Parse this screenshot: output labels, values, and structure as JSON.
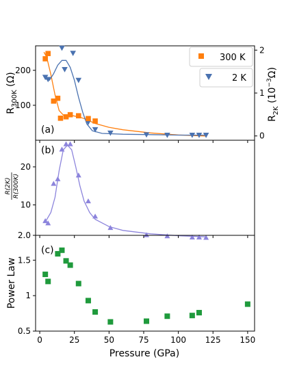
{
  "colors": {
    "orange": "#ff7f0e",
    "blue": "#4a72b0",
    "purple": "#8c84dc",
    "green": "#1f9a3c",
    "axis": "#000000"
  },
  "chart_data": [
    {
      "panel_label": "(a)",
      "type": "scatter",
      "xlim": [
        -3,
        155
      ],
      "ylim_left": [
        0,
        270
      ],
      "ylim_right": [
        -0.1,
        2.1
      ],
      "ylabel_left": "R300K (Ω)",
      "ylabel_right": "R2K (10⁻³Ω)",
      "yticks_left": [
        100,
        200
      ],
      "yticks_right": [
        0,
        1,
        2
      ],
      "legend": [
        {
          "label": "300 K",
          "marker": "square",
          "color": "#ff7f0e"
        },
        {
          "label": "2 K",
          "marker": "triangle-down",
          "color": "#4a72b0"
        }
      ],
      "series": [
        {
          "name": "300 K",
          "axis": "left",
          "marker": "square",
          "color": "#ff7f0e",
          "points": [
            [
              4,
              233
            ],
            [
              6,
              248
            ],
            [
              10,
              112
            ],
            [
              13,
              120
            ],
            [
              15,
              63
            ],
            [
              19,
              67
            ],
            [
              22,
              73
            ],
            [
              28,
              70
            ],
            [
              35,
              62
            ],
            [
              40,
              55
            ]
          ],
          "fit": [
            [
              3,
              252
            ],
            [
              5,
              238
            ],
            [
              8,
              188
            ],
            [
              11,
              130
            ],
            [
              14,
              85
            ],
            [
              17,
              72
            ],
            [
              20,
              70
            ],
            [
              24,
              70
            ],
            [
              28,
              67
            ],
            [
              32,
              62
            ],
            [
              36,
              55
            ],
            [
              40,
              48
            ],
            [
              50,
              37
            ],
            [
              60,
              30
            ],
            [
              80,
              21
            ],
            [
              100,
              15
            ],
            [
              120,
              12
            ]
          ]
        },
        {
          "name": "2 K",
          "axis": "right",
          "marker": "triangle-down",
          "color": "#4a72b0",
          "points": [
            [
              4,
              1.37
            ],
            [
              6,
              1.32
            ],
            [
              16,
              2.05
            ],
            [
              18,
              1.55
            ],
            [
              24,
              1.93
            ],
            [
              28,
              1.3
            ],
            [
              35,
              0.32
            ],
            [
              40,
              0.15
            ],
            [
              51,
              0.07
            ],
            [
              77,
              0.03
            ],
            [
              92,
              0.02
            ],
            [
              110,
              0.02
            ],
            [
              115,
              0.02
            ],
            [
              120,
              0.02
            ]
          ],
          "fit": [
            [
              4,
              1.33
            ],
            [
              7,
              1.3
            ],
            [
              10,
              1.45
            ],
            [
              13,
              1.65
            ],
            [
              16,
              1.76
            ],
            [
              19,
              1.76
            ],
            [
              22,
              1.6
            ],
            [
              25,
              1.3
            ],
            [
              28,
              0.9
            ],
            [
              31,
              0.55
            ],
            [
              34,
              0.28
            ],
            [
              38,
              0.12
            ],
            [
              45,
              0.06
            ],
            [
              60,
              0.04
            ],
            [
              80,
              0.03
            ],
            [
              100,
              0.02
            ],
            [
              120,
              0.02
            ]
          ]
        }
      ]
    },
    {
      "panel_label": "(b)",
      "type": "scatter",
      "xlim": [
        -3,
        155
      ],
      "ylim": [
        2,
        27
      ],
      "yticks": [
        2.0,
        10,
        20
      ],
      "ylabel_num": "R(2K)",
      "ylabel_den": "R(300K)",
      "series": [
        {
          "name": "",
          "marker": "triangle-up",
          "color": "#8c84dc",
          "points": [
            [
              4,
              5.8
            ],
            [
              6,
              5.2
            ],
            [
              10,
              15.6
            ],
            [
              13,
              16.8
            ],
            [
              16,
              24.6
            ],
            [
              19,
              26
            ],
            [
              22,
              26
            ],
            [
              28,
              17.8
            ],
            [
              35,
              11
            ],
            [
              40,
              7
            ],
            [
              51,
              4
            ],
            [
              77,
              2.1
            ],
            [
              92,
              1.8
            ],
            [
              110,
              1.5
            ],
            [
              115,
              1.5
            ],
            [
              120,
              1.4
            ]
          ],
          "fit": [
            [
              4,
              5.5
            ],
            [
              8,
              8
            ],
            [
              11,
              12
            ],
            [
              14,
              19
            ],
            [
              17,
              24.5
            ],
            [
              20,
              25.7
            ],
            [
              23,
              24.5
            ],
            [
              26,
              20
            ],
            [
              29,
              15
            ],
            [
              32,
              11
            ],
            [
              36,
              8
            ],
            [
              40,
              6.2
            ],
            [
              50,
              4.3
            ],
            [
              60,
              3.3
            ],
            [
              80,
              2.4
            ],
            [
              100,
              1.9
            ],
            [
              120,
              1.6
            ]
          ]
        }
      ]
    },
    {
      "panel_label": "(c)",
      "type": "scatter",
      "xlim": [
        -3,
        155
      ],
      "ylim": [
        0.5,
        1.85
      ],
      "yticks": [
        0.5,
        1.0,
        1.5
      ],
      "ylabel": "Power Law",
      "xlabel": "Pressure (GPa)",
      "xticks": [
        0,
        25,
        50,
        75,
        100,
        125,
        150
      ],
      "series": [
        {
          "name": "",
          "marker": "square",
          "color": "#1f9a3c",
          "points": [
            [
              4,
              1.3
            ],
            [
              6,
              1.2
            ],
            [
              13,
              1.59
            ],
            [
              16,
              1.64
            ],
            [
              19,
              1.49
            ],
            [
              22,
              1.43
            ],
            [
              28,
              1.17
            ],
            [
              35,
              0.93
            ],
            [
              40,
              0.77
            ],
            [
              51,
              0.63
            ],
            [
              77,
              0.64
            ],
            [
              92,
              0.71
            ],
            [
              110,
              0.72
            ],
            [
              115,
              0.76
            ],
            [
              150,
              0.88
            ]
          ]
        }
      ]
    }
  ]
}
